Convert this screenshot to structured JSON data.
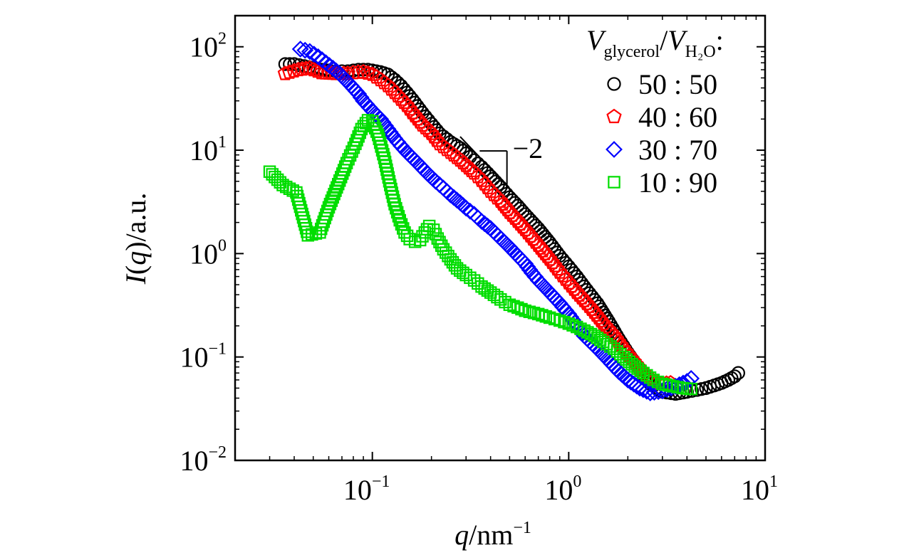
{
  "chart_data": {
    "type": "scatter",
    "x_scale": "log",
    "y_scale": "log",
    "xlim": [
      0.02,
      10
    ],
    "ylim": [
      0.01,
      200
    ],
    "x_ticks": [
      {
        "value": 0.1,
        "base": "10",
        "exp": "−1"
      },
      {
        "value": 1,
        "base": "10",
        "exp": "0"
      },
      {
        "value": 10,
        "base": "10",
        "exp": "1"
      }
    ],
    "y_ticks": [
      {
        "value": 0.01,
        "base": "10",
        "exp": "−2"
      },
      {
        "value": 0.1,
        "base": "10",
        "exp": "−1"
      },
      {
        "value": 1,
        "base": "10",
        "exp": "0"
      },
      {
        "value": 10,
        "base": "10",
        "exp": "1"
      },
      {
        "value": 100,
        "base": "10",
        "exp": "2"
      }
    ],
    "xlabel": {
      "var": "q",
      "unit": "/nm",
      "exp": "−1"
    },
    "ylabel": {
      "var": "I",
      "paren_open": "(",
      "arg": "q",
      "paren_close": ")",
      "unit": "/a.u."
    },
    "legend_title": {
      "v1": "V",
      "sub1": "glycerol",
      "sep": "/",
      "v2": "V",
      "sub2": "H₂O",
      "colon": ":"
    },
    "legend_position": "top-right",
    "slope_annotation": {
      "label": "−2",
      "slope": -2,
      "x_start": 0.28,
      "x_end": 0.6,
      "y_start": 13.5
    },
    "series": [
      {
        "name": "50 : 50",
        "marker": "circle",
        "color": "#000000",
        "points": [
          [
            0.036,
            68
          ],
          [
            0.04,
            68
          ],
          [
            0.045,
            65
          ],
          [
            0.05,
            62
          ],
          [
            0.055,
            60
          ],
          [
            0.06,
            59
          ],
          [
            0.065,
            58
          ],
          [
            0.07,
            58
          ],
          [
            0.075,
            58
          ],
          [
            0.08,
            59
          ],
          [
            0.085,
            60
          ],
          [
            0.09,
            60
          ],
          [
            0.095,
            60
          ],
          [
            0.1,
            59
          ],
          [
            0.11,
            57
          ],
          [
            0.12,
            54
          ],
          [
            0.13,
            48
          ],
          [
            0.14,
            42
          ],
          [
            0.15,
            36
          ],
          [
            0.16,
            31
          ],
          [
            0.18,
            23
          ],
          [
            0.2,
            18
          ],
          [
            0.22,
            14.5
          ],
          [
            0.25,
            12
          ],
          [
            0.28,
            10.5
          ],
          [
            0.3,
            9.3
          ],
          [
            0.33,
            8
          ],
          [
            0.36,
            6.9
          ],
          [
            0.4,
            5.6
          ],
          [
            0.45,
            4.4
          ],
          [
            0.5,
            3.5
          ],
          [
            0.55,
            2.9
          ],
          [
            0.6,
            2.4
          ],
          [
            0.7,
            1.75
          ],
          [
            0.8,
            1.28
          ],
          [
            0.9,
            0.95
          ],
          [
            1.0,
            0.75
          ],
          [
            1.1,
            0.6
          ],
          [
            1.2,
            0.48
          ],
          [
            1.4,
            0.33
          ],
          [
            1.6,
            0.22
          ],
          [
            1.8,
            0.15
          ],
          [
            2.0,
            0.11
          ],
          [
            2.3,
            0.075
          ],
          [
            2.6,
            0.055
          ],
          [
            3.0,
            0.046
          ],
          [
            3.5,
            0.044
          ],
          [
            4.0,
            0.046
          ],
          [
            4.5,
            0.048
          ],
          [
            5.0,
            0.05
          ],
          [
            5.5,
            0.053
          ],
          [
            6.0,
            0.056
          ],
          [
            6.5,
            0.06
          ],
          [
            7.0,
            0.065
          ],
          [
            7.3,
            0.07
          ]
        ]
      },
      {
        "name": "40 : 60",
        "marker": "pentagon",
        "color": "#ff0000",
        "points": [
          [
            0.036,
            55
          ],
          [
            0.042,
            60
          ],
          [
            0.048,
            62
          ],
          [
            0.055,
            56
          ],
          [
            0.065,
            55
          ],
          [
            0.075,
            55
          ],
          [
            0.08,
            56
          ],
          [
            0.09,
            57
          ],
          [
            0.1,
            54
          ],
          [
            0.11,
            48
          ],
          [
            0.12,
            42
          ],
          [
            0.13,
            36
          ],
          [
            0.14,
            31
          ],
          [
            0.15,
            27
          ],
          [
            0.16,
            23
          ],
          [
            0.17,
            20
          ],
          [
            0.18,
            17.5
          ],
          [
            0.2,
            14.5
          ],
          [
            0.22,
            11.5
          ],
          [
            0.25,
            9.5
          ],
          [
            0.28,
            8
          ],
          [
            0.3,
            7.1
          ],
          [
            0.33,
            6
          ],
          [
            0.36,
            5.1
          ],
          [
            0.4,
            4
          ],
          [
            0.45,
            3.2
          ],
          [
            0.5,
            2.5
          ],
          [
            0.55,
            2.05
          ],
          [
            0.6,
            1.7
          ],
          [
            0.7,
            1.2
          ],
          [
            0.8,
            0.88
          ],
          [
            0.9,
            0.66
          ],
          [
            1.0,
            0.52
          ],
          [
            1.1,
            0.42
          ],
          [
            1.2,
            0.35
          ],
          [
            1.35,
            0.27
          ],
          [
            1.5,
            0.21
          ],
          [
            1.7,
            0.16
          ],
          [
            1.9,
            0.12
          ],
          [
            2.1,
            0.095
          ],
          [
            2.4,
            0.07
          ],
          [
            2.7,
            0.058
          ],
          [
            3.0,
            0.055
          ],
          [
            3.3,
            0.056
          ]
        ]
      },
      {
        "name": "30 : 70",
        "marker": "diamond",
        "color": "#0000ff",
        "points": [
          [
            0.043,
            95
          ],
          [
            0.048,
            90
          ],
          [
            0.053,
            80
          ],
          [
            0.058,
            70
          ],
          [
            0.063,
            62
          ],
          [
            0.068,
            55
          ],
          [
            0.073,
            48
          ],
          [
            0.078,
            42
          ],
          [
            0.085,
            35
          ],
          [
            0.09,
            30
          ],
          [
            0.1,
            24
          ],
          [
            0.11,
            20
          ],
          [
            0.12,
            16
          ],
          [
            0.13,
            13
          ],
          [
            0.14,
            11
          ],
          [
            0.15,
            9.5
          ],
          [
            0.17,
            7.5
          ],
          [
            0.19,
            6
          ],
          [
            0.21,
            5
          ],
          [
            0.23,
            4.3
          ],
          [
            0.25,
            3.7
          ],
          [
            0.28,
            3.1
          ],
          [
            0.3,
            2.75
          ],
          [
            0.33,
            2.4
          ],
          [
            0.36,
            2.05
          ],
          [
            0.4,
            1.75
          ],
          [
            0.45,
            1.4
          ],
          [
            0.5,
            1.15
          ],
          [
            0.55,
            0.95
          ],
          [
            0.6,
            0.8
          ],
          [
            0.65,
            0.65
          ],
          [
            0.7,
            0.55
          ],
          [
            0.8,
            0.42
          ],
          [
            0.9,
            0.33
          ],
          [
            1.0,
            0.26
          ],
          [
            1.1,
            0.2
          ],
          [
            1.2,
            0.16
          ],
          [
            1.4,
            0.12
          ],
          [
            1.6,
            0.092
          ],
          [
            1.8,
            0.072
          ],
          [
            2.0,
            0.06
          ],
          [
            2.3,
            0.05
          ],
          [
            2.6,
            0.045
          ],
          [
            3.0,
            0.047
          ],
          [
            3.5,
            0.052
          ],
          [
            4.0,
            0.058
          ],
          [
            4.2,
            0.062
          ]
        ]
      },
      {
        "name": "10 : 90",
        "marker": "square",
        "color": "#00dd00",
        "points": [
          [
            0.03,
            6.2
          ],
          [
            0.035,
            4.6
          ],
          [
            0.041,
            3.9
          ],
          [
            0.047,
            1.5
          ],
          [
            0.054,
            1.6
          ],
          [
            0.06,
            2.8
          ],
          [
            0.067,
            4.7
          ],
          [
            0.074,
            7.5
          ],
          [
            0.082,
            11.5
          ],
          [
            0.088,
            16
          ],
          [
            0.095,
            19.5
          ],
          [
            0.1,
            19
          ],
          [
            0.107,
            14
          ],
          [
            0.115,
            8.4
          ],
          [
            0.122,
            5
          ],
          [
            0.13,
            3
          ],
          [
            0.138,
            2.1
          ],
          [
            0.146,
            1.6
          ],
          [
            0.155,
            1.38
          ],
          [
            0.165,
            1.3
          ],
          [
            0.175,
            1.35
          ],
          [
            0.185,
            1.6
          ],
          [
            0.195,
            1.85
          ],
          [
            0.205,
            1.7
          ],
          [
            0.215,
            1.4
          ],
          [
            0.23,
            1.1
          ],
          [
            0.25,
            0.88
          ],
          [
            0.27,
            0.72
          ],
          [
            0.3,
            0.62
          ],
          [
            0.33,
            0.55
          ],
          [
            0.36,
            0.48
          ],
          [
            0.4,
            0.42
          ],
          [
            0.45,
            0.36
          ],
          [
            0.5,
            0.32
          ],
          [
            0.55,
            0.3
          ],
          [
            0.6,
            0.28
          ],
          [
            0.7,
            0.26
          ],
          [
            0.8,
            0.24
          ],
          [
            0.9,
            0.225
          ],
          [
            1.0,
            0.21
          ],
          [
            1.1,
            0.195
          ],
          [
            1.2,
            0.18
          ],
          [
            1.35,
            0.16
          ],
          [
            1.5,
            0.14
          ],
          [
            1.7,
            0.12
          ],
          [
            1.9,
            0.1
          ],
          [
            2.1,
            0.085
          ],
          [
            2.4,
            0.07
          ],
          [
            2.7,
            0.06
          ],
          [
            3.0,
            0.055
          ],
          [
            3.4,
            0.052
          ],
          [
            3.8,
            0.05
          ],
          [
            4.2,
            0.049
          ]
        ]
      }
    ]
  }
}
